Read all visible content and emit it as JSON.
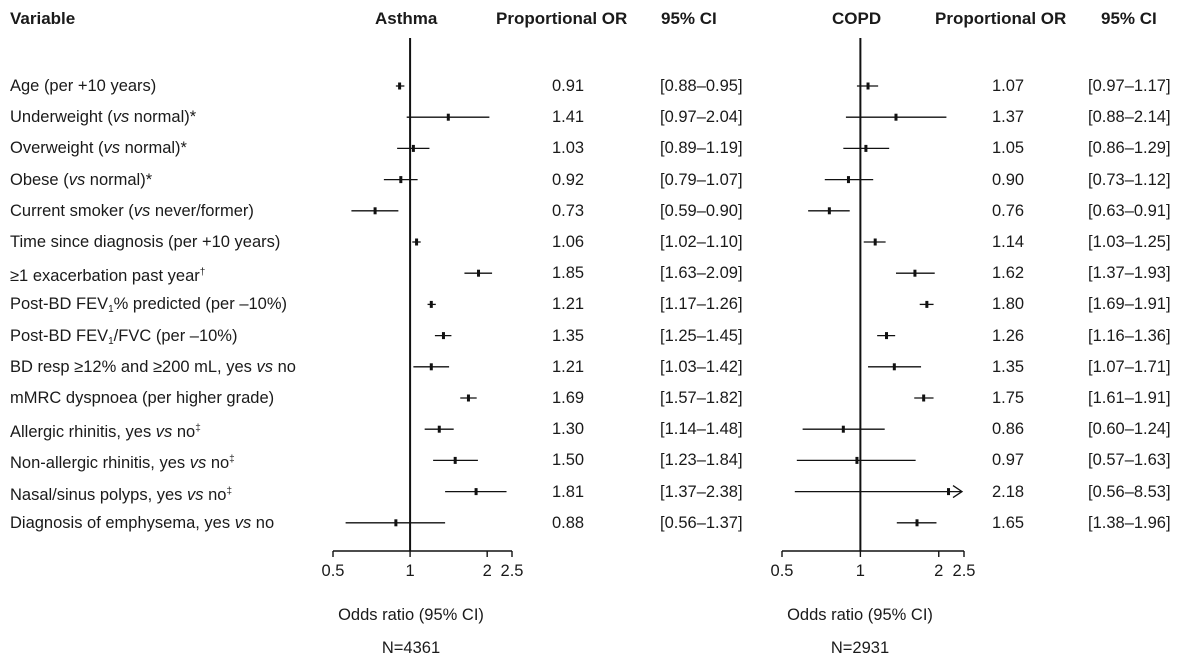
{
  "header": {
    "variable": "Variable",
    "asthma": "Asthma",
    "asthma_or": "Proportional OR",
    "asthma_ci": "95% CI",
    "copd": "COPD",
    "copd_or": "Proportional OR",
    "copd_ci": "95% CI"
  },
  "rows": [
    {
      "parts": [
        {
          "t": "Age (per +10 years)"
        }
      ]
    },
    {
      "parts": [
        {
          "t": "Underweight ("
        },
        {
          "t": "vs",
          "i": true
        },
        {
          "t": " normal)*"
        }
      ]
    },
    {
      "parts": [
        {
          "t": "Overweight ("
        },
        {
          "t": "vs",
          "i": true
        },
        {
          "t": " normal)*"
        }
      ]
    },
    {
      "parts": [
        {
          "t": "Obese ("
        },
        {
          "t": "vs",
          "i": true
        },
        {
          "t": " normal)*"
        }
      ]
    },
    {
      "parts": [
        {
          "t": "Current smoker ("
        },
        {
          "t": "vs",
          "i": true
        },
        {
          "t": " never/former)"
        }
      ]
    },
    {
      "parts": [
        {
          "t": "Time since diagnosis (per +10 years)"
        }
      ]
    },
    {
      "parts": [
        {
          "t": "≥1 exacerbation past year"
        },
        {
          "t": "†",
          "sup": true
        }
      ]
    },
    {
      "parts": [
        {
          "t": "Post-BD FEV"
        },
        {
          "t": "1",
          "sub": true
        },
        {
          "t": "% predicted (per –10%)"
        }
      ]
    },
    {
      "parts": [
        {
          "t": "Post-BD FEV"
        },
        {
          "t": "1",
          "sub": true
        },
        {
          "t": "/FVC (per –10%)"
        }
      ]
    },
    {
      "parts": [
        {
          "t": "BD resp ≥12% and ≥200 mL, yes "
        },
        {
          "t": "vs",
          "i": true
        },
        {
          "t": " no"
        }
      ]
    },
    {
      "parts": [
        {
          "t": "mMRC dyspnoea (per higher grade)"
        }
      ]
    },
    {
      "parts": [
        {
          "t": "Allergic rhinitis, yes "
        },
        {
          "t": "vs",
          "i": true
        },
        {
          "t": " no"
        },
        {
          "t": "‡",
          "sup": true
        }
      ]
    },
    {
      "parts": [
        {
          "t": "Non-allergic rhinitis, yes "
        },
        {
          "t": "vs",
          "i": true
        },
        {
          "t": " no"
        },
        {
          "t": "‡",
          "sup": true
        }
      ]
    },
    {
      "parts": [
        {
          "t": "Nasal/sinus polyps, yes "
        },
        {
          "t": "vs",
          "i": true
        },
        {
          "t": " no"
        },
        {
          "t": "‡",
          "sup": true
        }
      ]
    },
    {
      "parts": [
        {
          "t": "Diagnosis of emphysema, yes "
        },
        {
          "t": "vs",
          "i": true
        },
        {
          "t": " no"
        }
      ]
    }
  ],
  "chart_data": [
    {
      "type": "forest",
      "title": "Asthma",
      "xlabel": "Odds ratio (95% CI)",
      "n_label": "N=4361",
      "x_scale": "log",
      "xlim": [
        0.5,
        2.5
      ],
      "xticks": [
        0.5,
        1,
        2,
        2.5
      ],
      "xtick_labels": [
        "0.5",
        "1",
        "2",
        "2.5"
      ],
      "or_labels": [
        "0.91",
        "1.41",
        "1.03",
        "0.92",
        "0.73",
        "1.06",
        "1.85",
        "1.21",
        "1.35",
        "1.21",
        "1.69",
        "1.30",
        "1.50",
        "1.81",
        "0.88"
      ],
      "ci_labels": [
        "[0.88–0.95]",
        "[0.97–2.04]",
        "[0.89–1.19]",
        "[0.79–1.07]",
        "[0.59–0.90]",
        "[1.02–1.10]",
        "[1.63–2.09]",
        "[1.17–1.26]",
        "[1.25–1.45]",
        "[1.03–1.42]",
        "[1.57–1.82]",
        "[1.14–1.48]",
        "[1.23–1.84]",
        "[1.37–2.38]",
        "[0.56–1.37]"
      ],
      "or": [
        0.91,
        1.41,
        1.03,
        0.92,
        0.73,
        1.06,
        1.85,
        1.21,
        1.35,
        1.21,
        1.69,
        1.3,
        1.5,
        1.81,
        0.88
      ],
      "lo": [
        0.88,
        0.97,
        0.89,
        0.79,
        0.59,
        1.02,
        1.63,
        1.17,
        1.25,
        1.03,
        1.57,
        1.14,
        1.23,
        1.37,
        0.56
      ],
      "hi": [
        0.95,
        2.04,
        1.19,
        1.07,
        0.9,
        1.1,
        2.09,
        1.26,
        1.45,
        1.42,
        1.82,
        1.48,
        1.84,
        2.38,
        1.37
      ]
    },
    {
      "type": "forest",
      "title": "COPD",
      "xlabel": "Odds ratio (95% CI)",
      "n_label": "N=2931",
      "x_scale": "log",
      "xlim": [
        0.5,
        2.5
      ],
      "xticks": [
        0.5,
        1,
        2,
        2.5
      ],
      "xtick_labels": [
        "0.5",
        "1",
        "2",
        "2.5"
      ],
      "or_labels": [
        "1.07",
        "1.37",
        "1.05",
        "0.90",
        "0.76",
        "1.14",
        "1.62",
        "1.80",
        "1.26",
        "1.35",
        "1.75",
        "0.86",
        "0.97",
        "2.18",
        "1.65"
      ],
      "ci_labels": [
        "[0.97–1.17]",
        "[0.88–2.14]",
        "[0.86–1.29]",
        "[0.73–1.12]",
        "[0.63–0.91]",
        "[1.03–1.25]",
        "[1.37–1.93]",
        "[1.69–1.91]",
        "[1.16–1.36]",
        "[1.07–1.71]",
        "[1.61–1.91]",
        "[0.60–1.24]",
        "[0.57–1.63]",
        "[0.56–8.53]",
        "[1.38–1.96]"
      ],
      "or": [
        1.07,
        1.37,
        1.05,
        0.9,
        0.76,
        1.14,
        1.62,
        1.8,
        1.26,
        1.35,
        1.75,
        0.86,
        0.97,
        2.18,
        1.65
      ],
      "lo": [
        0.97,
        0.88,
        0.86,
        0.73,
        0.63,
        1.03,
        1.37,
        1.69,
        1.16,
        1.07,
        1.61,
        0.6,
        0.57,
        0.56,
        1.38
      ],
      "hi": [
        1.17,
        2.14,
        1.29,
        1.12,
        0.91,
        1.25,
        1.93,
        1.91,
        1.36,
        1.71,
        1.91,
        1.24,
        1.63,
        8.53,
        1.96
      ]
    }
  ]
}
